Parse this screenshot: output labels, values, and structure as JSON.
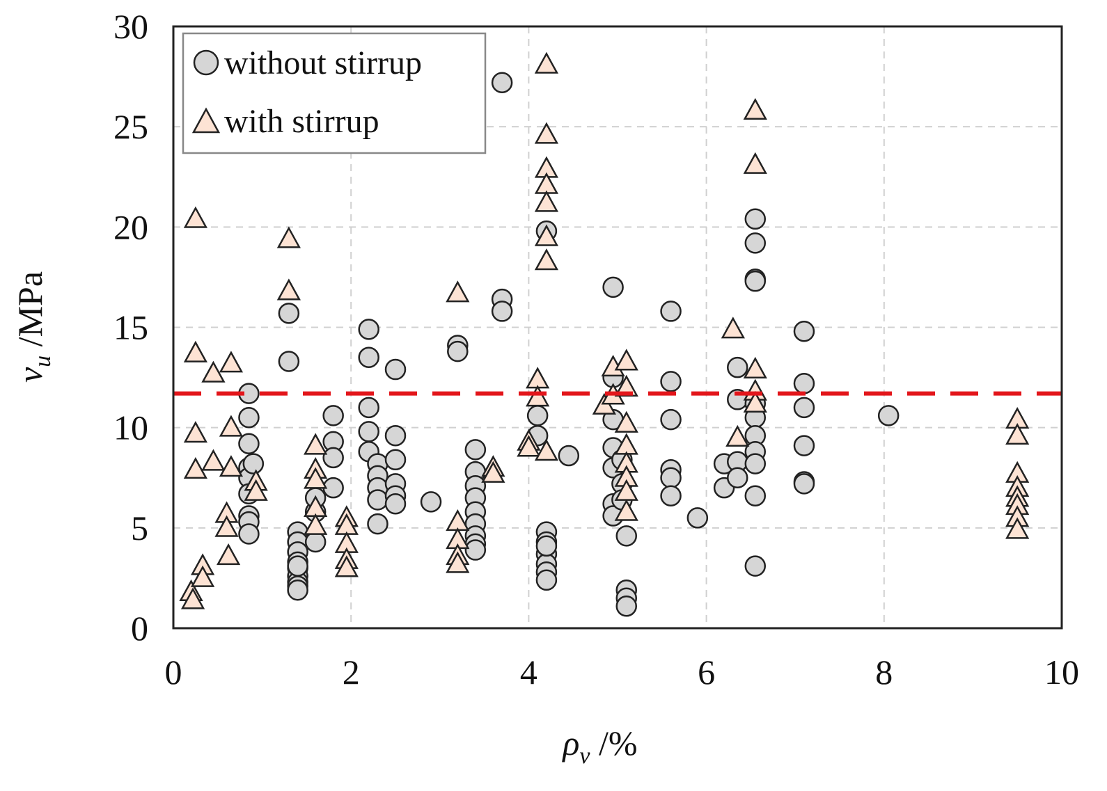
{
  "chart_data": {
    "type": "scatter",
    "title": "",
    "xlabel": {
      "symbol": "ρ",
      "sub": "v",
      "unit": " /%"
    },
    "ylabel": {
      "symbol": "v",
      "sub": "u",
      "unit": " /MPa"
    },
    "xlim": [
      0,
      10
    ],
    "ylim": [
      0,
      30
    ],
    "xticks": [
      0,
      2,
      4,
      6,
      8,
      10
    ],
    "yticks": [
      0,
      5,
      10,
      15,
      20,
      25,
      30
    ],
    "grid": true,
    "legend_position": "top-left",
    "reference_line": {
      "y": 11.7,
      "color": "#e3161b",
      "style": "dashed"
    },
    "series": [
      {
        "name": "without stirrup",
        "marker": "circle",
        "color": "#d6d6d6",
        "points": [
          [
            0.85,
            11.7
          ],
          [
            0.85,
            10.5
          ],
          [
            0.85,
            9.2
          ],
          [
            0.85,
            8.0
          ],
          [
            0.85,
            7.5
          ],
          [
            0.85,
            6.7
          ],
          [
            0.85,
            5.6
          ],
          [
            0.85,
            5.3
          ],
          [
            0.85,
            4.7
          ],
          [
            0.9,
            8.2
          ],
          [
            1.3,
            15.7
          ],
          [
            1.3,
            13.3
          ],
          [
            1.4,
            4.8
          ],
          [
            1.4,
            4.3
          ],
          [
            1.4,
            3.8
          ],
          [
            1.4,
            3.3
          ],
          [
            1.4,
            3.0
          ],
          [
            1.4,
            2.6
          ],
          [
            1.4,
            2.3
          ],
          [
            1.4,
            2.1
          ],
          [
            1.4,
            1.9
          ],
          [
            1.4,
            3.1
          ],
          [
            1.6,
            4.3
          ],
          [
            1.6,
            5.8
          ],
          [
            1.6,
            6.5
          ],
          [
            1.8,
            10.6
          ],
          [
            1.8,
            9.3
          ],
          [
            1.8,
            8.5
          ],
          [
            1.8,
            7.0
          ],
          [
            2.2,
            14.9
          ],
          [
            2.2,
            13.5
          ],
          [
            2.2,
            11.0
          ],
          [
            2.2,
            9.8
          ],
          [
            2.2,
            8.8
          ],
          [
            2.3,
            8.2
          ],
          [
            2.3,
            7.6
          ],
          [
            2.3,
            7.0
          ],
          [
            2.3,
            6.4
          ],
          [
            2.3,
            5.2
          ],
          [
            2.5,
            12.9
          ],
          [
            2.5,
            9.6
          ],
          [
            2.5,
            8.4
          ],
          [
            2.5,
            7.2
          ],
          [
            2.5,
            6.6
          ],
          [
            2.5,
            6.2
          ],
          [
            2.9,
            6.3
          ],
          [
            3.2,
            14.1
          ],
          [
            3.2,
            13.8
          ],
          [
            3.4,
            8.9
          ],
          [
            3.4,
            7.8
          ],
          [
            3.4,
            7.1
          ],
          [
            3.4,
            6.5
          ],
          [
            3.4,
            5.8
          ],
          [
            3.4,
            5.2
          ],
          [
            3.4,
            4.6
          ],
          [
            3.4,
            4.2
          ],
          [
            3.4,
            3.9
          ],
          [
            3.7,
            27.2
          ],
          [
            3.7,
            16.4
          ],
          [
            3.7,
            15.8
          ],
          [
            4.1,
            10.6
          ],
          [
            4.1,
            9.6
          ],
          [
            4.2,
            19.8
          ],
          [
            4.2,
            4.8
          ],
          [
            4.2,
            4.3
          ],
          [
            4.2,
            3.7
          ],
          [
            4.2,
            3.2
          ],
          [
            4.2,
            2.8
          ],
          [
            4.2,
            2.4
          ],
          [
            4.2,
            4.1
          ],
          [
            4.45,
            8.6
          ],
          [
            4.95,
            17.0
          ],
          [
            4.95,
            12.5
          ],
          [
            4.95,
            10.4
          ],
          [
            4.95,
            9.0
          ],
          [
            4.95,
            8.0
          ],
          [
            4.95,
            6.2
          ],
          [
            4.95,
            5.6
          ],
          [
            5.05,
            8.4
          ],
          [
            5.05,
            7.2
          ],
          [
            5.05,
            6.4
          ],
          [
            5.1,
            4.6
          ],
          [
            5.1,
            1.9
          ],
          [
            5.1,
            1.5
          ],
          [
            5.1,
            1.1
          ],
          [
            5.6,
            15.8
          ],
          [
            5.6,
            12.3
          ],
          [
            5.6,
            10.4
          ],
          [
            5.6,
            7.9
          ],
          [
            5.6,
            7.5
          ],
          [
            5.6,
            6.6
          ],
          [
            5.9,
            5.5
          ],
          [
            6.2,
            8.2
          ],
          [
            6.2,
            7.0
          ],
          [
            6.35,
            13.0
          ],
          [
            6.35,
            11.4
          ],
          [
            6.35,
            8.3
          ],
          [
            6.35,
            7.5
          ],
          [
            6.55,
            20.4
          ],
          [
            6.55,
            19.2
          ],
          [
            6.55,
            17.4
          ],
          [
            6.55,
            17.3
          ],
          [
            6.55,
            11.2
          ],
          [
            6.55,
            10.5
          ],
          [
            6.55,
            9.6
          ],
          [
            6.55,
            8.8
          ],
          [
            6.55,
            8.2
          ],
          [
            6.55,
            6.6
          ],
          [
            6.55,
            3.1
          ],
          [
            7.1,
            14.8
          ],
          [
            7.1,
            12.2
          ],
          [
            7.1,
            11.0
          ],
          [
            7.1,
            9.1
          ],
          [
            7.1,
            7.3
          ],
          [
            7.1,
            7.2
          ],
          [
            8.05,
            10.6
          ]
        ]
      },
      {
        "name": "with stirrup",
        "marker": "triangle",
        "color": "#fde3d4",
        "points": [
          [
            0.25,
            20.4
          ],
          [
            0.25,
            13.7
          ],
          [
            0.25,
            9.7
          ],
          [
            0.25,
            7.9
          ],
          [
            0.2,
            1.8
          ],
          [
            0.22,
            1.4
          ],
          [
            0.33,
            3.1
          ],
          [
            0.33,
            2.5
          ],
          [
            0.45,
            12.7
          ],
          [
            0.45,
            8.3
          ],
          [
            0.6,
            5.7
          ],
          [
            0.6,
            5.0
          ],
          [
            0.62,
            3.6
          ],
          [
            0.65,
            13.2
          ],
          [
            0.65,
            10.0
          ],
          [
            0.65,
            8.0
          ],
          [
            0.93,
            7.3
          ],
          [
            0.93,
            6.8
          ],
          [
            1.3,
            19.4
          ],
          [
            1.3,
            16.8
          ],
          [
            1.6,
            9.1
          ],
          [
            1.6,
            7.9
          ],
          [
            1.6,
            7.4
          ],
          [
            1.6,
            6.0
          ],
          [
            1.6,
            5.1
          ],
          [
            1.95,
            5.5
          ],
          [
            1.95,
            5.1
          ],
          [
            1.95,
            4.2
          ],
          [
            1.95,
            3.4
          ],
          [
            1.95,
            3.0
          ],
          [
            3.2,
            16.7
          ],
          [
            3.2,
            5.3
          ],
          [
            3.2,
            4.4
          ],
          [
            3.2,
            3.6
          ],
          [
            3.2,
            3.2
          ],
          [
            3.6,
            8.0
          ],
          [
            3.6,
            7.7
          ],
          [
            4.0,
            9.3
          ],
          [
            4.0,
            9.0
          ],
          [
            4.1,
            12.4
          ],
          [
            4.1,
            11.5
          ],
          [
            4.2,
            28.1
          ],
          [
            4.2,
            24.6
          ],
          [
            4.2,
            22.9
          ],
          [
            4.2,
            22.1
          ],
          [
            4.2,
            21.2
          ],
          [
            4.2,
            19.5
          ],
          [
            4.2,
            18.3
          ],
          [
            4.2,
            8.8
          ],
          [
            4.85,
            11.1
          ],
          [
            4.95,
            13.0
          ],
          [
            4.95,
            11.6
          ],
          [
            5.1,
            13.3
          ],
          [
            5.1,
            12.0
          ],
          [
            5.1,
            10.2
          ],
          [
            5.1,
            9.1
          ],
          [
            5.1,
            8.2
          ],
          [
            5.1,
            7.5
          ],
          [
            5.1,
            6.8
          ],
          [
            5.1,
            5.8
          ],
          [
            6.3,
            14.9
          ],
          [
            6.35,
            9.5
          ],
          [
            6.55,
            25.8
          ],
          [
            6.55,
            23.1
          ],
          [
            6.55,
            12.9
          ],
          [
            6.55,
            11.8
          ],
          [
            6.55,
            11.2
          ],
          [
            9.5,
            10.4
          ],
          [
            9.5,
            9.6
          ],
          [
            9.5,
            7.7
          ],
          [
            9.5,
            7.0
          ],
          [
            9.5,
            6.5
          ],
          [
            9.5,
            6.1
          ],
          [
            9.5,
            5.5
          ],
          [
            9.5,
            4.9
          ]
        ]
      }
    ]
  }
}
